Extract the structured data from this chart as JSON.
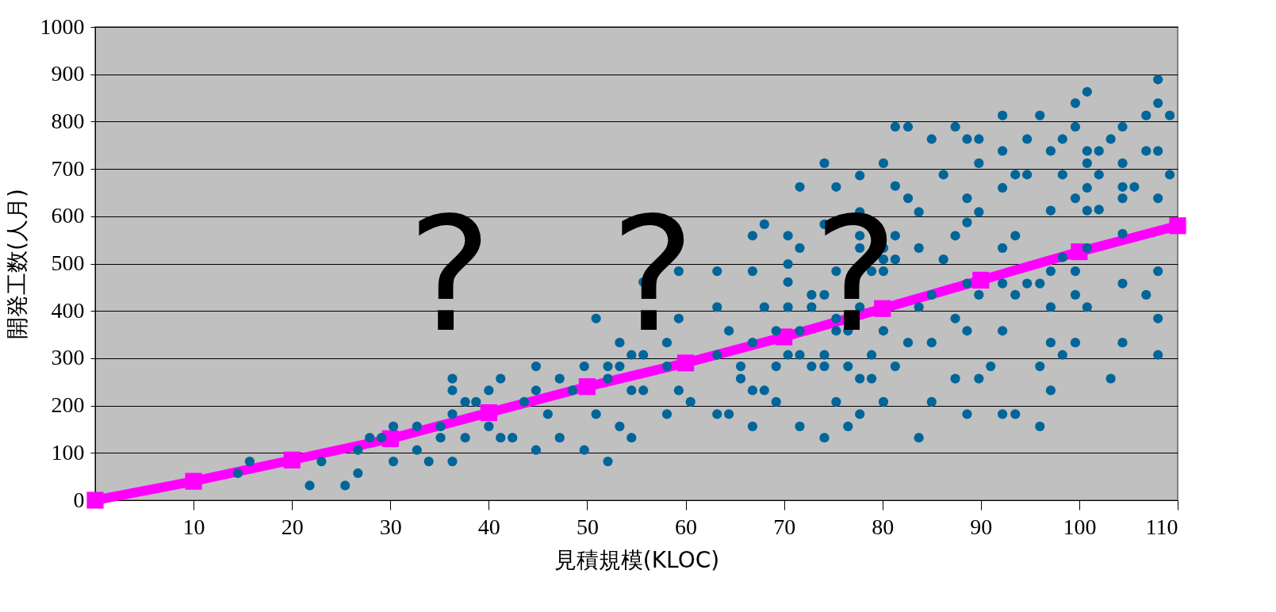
{
  "chart_data": {
    "type": "scatter",
    "xlabel": "見積規模(KLOC)",
    "ylabel": "開発工数(人月)",
    "xlim": [
      0,
      110
    ],
    "xticks": [
      10,
      20,
      30,
      40,
      50,
      60,
      70,
      80,
      90,
      100,
      110
    ],
    "ylim": [
      0,
      1000
    ],
    "yticks": [
      0,
      100,
      200,
      300,
      400,
      500,
      600,
      700,
      800,
      900,
      1000
    ],
    "grid": "y",
    "annotations": [
      "?",
      "?",
      "?"
    ],
    "series": [
      {
        "color": "#006699",
        "marker": "circle",
        "x": [
          14.5,
          15.7,
          21.8,
          23.0,
          25.4,
          26.7,
          26.7,
          27.9,
          29.1,
          30.3,
          30.3,
          32.7,
          32.7,
          33.9,
          35.1,
          35.1,
          36.3,
          36.3,
          36.3,
          36.3,
          37.6,
          37.6,
          38.7,
          40.0,
          40.0,
          41.2,
          41.2,
          42.4,
          43.6,
          44.8,
          44.8,
          44.8,
          46.0,
          47.2,
          47.2,
          48.5,
          49.7,
          49.7,
          50.9,
          50.9,
          52.1,
          52.1,
          52.1,
          53.3,
          53.3,
          53.3,
          54.5,
          54.5,
          54.5,
          55.7,
          55.7,
          55.7,
          58.1,
          58.1,
          59.3,
          59.3,
          59.3,
          58.1,
          60.5,
          63.2,
          63.2,
          63.2,
          63.2,
          64.4,
          64.4,
          65.6,
          65.6,
          66.8,
          66.8,
          66.8,
          66.8,
          66.8,
          68.0,
          68.0,
          68.0,
          69.2,
          69.2,
          69.2,
          70.4,
          70.4,
          70.4,
          70.4,
          70.4,
          71.6,
          71.6,
          71.6,
          71.6,
          71.6,
          72.8,
          72.8,
          72.8,
          74.1,
          74.1,
          74.1,
          74.1,
          74.1,
          74.1,
          75.3,
          75.3,
          75.3,
          75.3,
          75.3,
          76.5,
          76.5,
          76.5,
          77.7,
          77.7,
          77.7,
          77.7,
          77.7,
          77.7,
          77.7,
          78.9,
          78.9,
          78.9,
          80.1,
          80.1,
          80.1,
          80.1,
          80.1,
          80.1,
          81.3,
          81.3,
          81.3,
          81.3,
          81.3,
          82.6,
          82.6,
          82.6,
          83.7,
          83.7,
          83.7,
          83.7,
          85.0,
          85.0,
          85.0,
          85.0,
          86.2,
          86.2,
          87.4,
          87.4,
          87.4,
          87.4,
          88.6,
          88.6,
          88.6,
          88.6,
          88.6,
          88.6,
          89.8,
          89.8,
          89.8,
          89.8,
          89.8,
          91.0,
          92.2,
          92.2,
          92.2,
          92.2,
          92.2,
          92.2,
          92.2,
          93.5,
          93.5,
          93.5,
          93.5,
          94.7,
          94.7,
          94.7,
          96.0,
          96.0,
          96.0,
          96.0,
          97.1,
          97.1,
          97.1,
          97.1,
          97.1,
          97.1,
          98.3,
          98.3,
          98.3,
          98.3,
          99.6,
          99.6,
          99.6,
          99.6,
          99.6,
          99.6,
          100.8,
          100.8,
          100.8,
          100.8,
          100.8,
          100.8,
          100.8,
          102.0,
          102.0,
          102.0,
          103.2,
          103.2,
          104.4,
          104.4,
          104.4,
          104.4,
          104.4,
          104.4,
          104.4,
          105.6,
          106.8,
          106.8,
          106.8,
          108.0,
          108.0,
          108.0,
          108.0,
          108.0,
          108.0,
          108.0,
          109.2,
          109.2
        ],
        "values": [
          57,
          82,
          31,
          82,
          31,
          57,
          106,
          132,
          132,
          82,
          156,
          106,
          156,
          82,
          132,
          156,
          182,
          232,
          257,
          82,
          132,
          208,
          208,
          156,
          232,
          257,
          132,
          132,
          208,
          106,
          232,
          283,
          182,
          132,
          257,
          232,
          106,
          283,
          384,
          182,
          82,
          257,
          283,
          156,
          333,
          283,
          132,
          232,
          307,
          307,
          232,
          461,
          182,
          283,
          232,
          384,
          484,
          333,
          208,
          182,
          307,
          408,
          484,
          182,
          358,
          257,
          283,
          156,
          232,
          333,
          484,
          559,
          232,
          408,
          583,
          283,
          208,
          358,
          408,
          307,
          499,
          559,
          461,
          156,
          307,
          358,
          533,
          662,
          283,
          408,
          434,
          132,
          283,
          307,
          434,
          583,
          712,
          208,
          358,
          384,
          484,
          662,
          156,
          283,
          358,
          182,
          257,
          408,
          533,
          559,
          609,
          686,
          257,
          307,
          484,
          208,
          358,
          484,
          509,
          533,
          712,
          283,
          664,
          789,
          509,
          559,
          333,
          638,
          789,
          132,
          408,
          533,
          609,
          208,
          333,
          434,
          763,
          509,
          688,
          257,
          384,
          559,
          789,
          182,
          358,
          458,
          587,
          638,
          763,
          257,
          434,
          609,
          763,
          712,
          283,
          182,
          358,
          458,
          533,
          660,
          738,
          813,
          182,
          434,
          559,
          688,
          458,
          763,
          688,
          156,
          283,
          458,
          813,
          232,
          333,
          408,
          484,
          612,
          738,
          307,
          513,
          688,
          763,
          333,
          434,
          484,
          638,
          789,
          839,
          660,
          738,
          712,
          612,
          533,
          408,
          863,
          614,
          688,
          738,
          257,
          763,
          333,
          458,
          563,
          638,
          662,
          712,
          789,
          662,
          434,
          738,
          813,
          307,
          384,
          484,
          738,
          839,
          889,
          638,
          688,
          813
        ]
      },
      {
        "type": "line",
        "color": "#ff00ff",
        "marker": "square",
        "line_style": "solid",
        "x": [
          0,
          10,
          20,
          30,
          40,
          50,
          60,
          70,
          80,
          90,
          100,
          110
        ],
        "values": [
          0,
          40,
          85,
          130,
          185,
          240,
          290,
          345,
          405,
          465,
          525,
          580
        ]
      }
    ]
  }
}
